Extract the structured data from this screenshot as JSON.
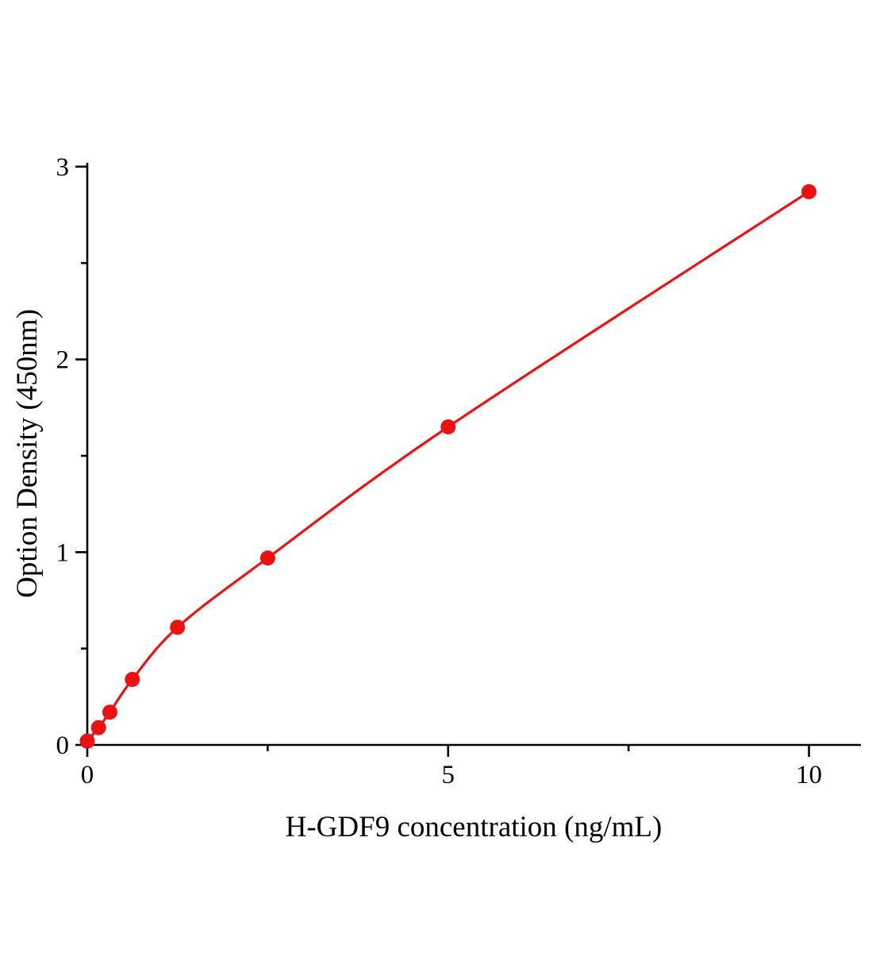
{
  "figure": {
    "background": "#ffffff"
  },
  "chart_data": {
    "type": "line-scatter",
    "title": "",
    "xlabel": "H-GDF9 concentration (ng/mL)",
    "ylabel": "Option Density (450nm)",
    "x": [
      0,
      0.156,
      0.313,
      0.625,
      1.25,
      2.5,
      5,
      10
    ],
    "y": [
      0.02,
      0.09,
      0.17,
      0.34,
      0.61,
      0.97,
      1.65,
      2.87
    ],
    "xlim": [
      0,
      10.72
    ],
    "ylim": [
      0,
      3.02
    ],
    "x_major_ticks": [
      0,
      5,
      10
    ],
    "x_minor_ticks": [
      2.5,
      7.5
    ],
    "y_major_ticks": [
      0,
      1,
      2,
      3
    ],
    "y_minor_ticks": [
      0.5,
      1.5,
      2.5
    ],
    "grid": false,
    "legend": null,
    "line_color": "#ee1111",
    "marker_color": "#ee1111",
    "axis_color": "#000000"
  }
}
